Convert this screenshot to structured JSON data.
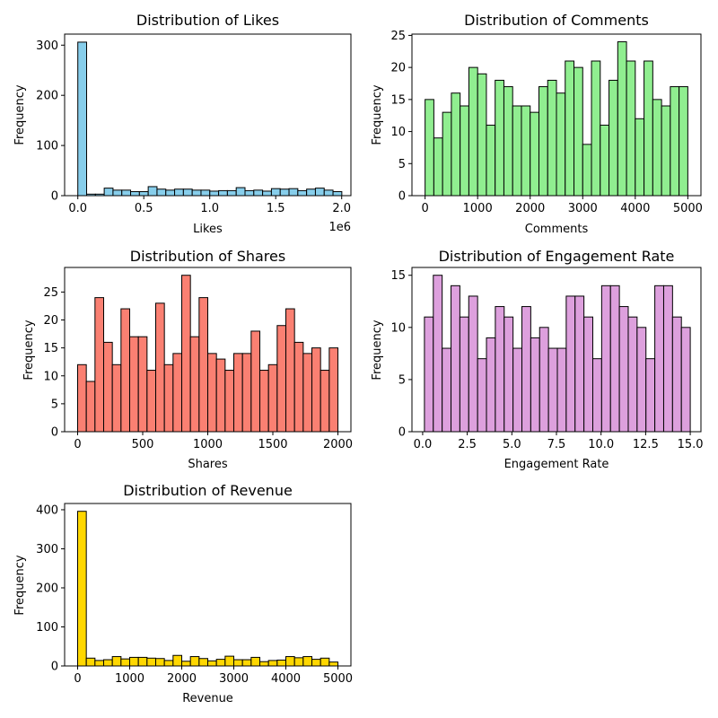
{
  "chart_data": [
    {
      "type": "bar",
      "title": "Distribution of Likes",
      "xlabel": "Likes",
      "ylabel": "Frequency",
      "x_offset_text": "1e6",
      "xlim": [
        -0.1,
        2.07
      ],
      "ylim": [
        0,
        322
      ],
      "xticks": [
        0.0,
        0.5,
        1.0,
        1.5,
        2.0
      ],
      "xtick_labels": [
        "0.0",
        "0.5",
        "1.0",
        "1.5",
        "2.0"
      ],
      "yticks": [
        0,
        100,
        200,
        300
      ],
      "ytick_labels": [
        "0",
        "100",
        "200",
        "300"
      ],
      "bin_start": 0.0,
      "bin_width": 0.0667,
      "values": [
        306,
        3,
        3,
        15,
        11,
        11,
        8,
        8,
        18,
        13,
        11,
        13,
        13,
        11,
        11,
        9,
        10,
        10,
        16,
        10,
        11,
        9,
        14,
        13,
        14,
        10,
        13,
        15,
        11,
        8
      ],
      "color": "#87ceeb"
    },
    {
      "type": "bar",
      "title": "Distribution of Comments",
      "xlabel": "Comments",
      "ylabel": "Frequency",
      "xlim": [
        -250,
        5250
      ],
      "ylim": [
        0,
        25.2
      ],
      "xticks": [
        0,
        1000,
        2000,
        3000,
        4000,
        5000
      ],
      "xtick_labels": [
        "0",
        "1000",
        "2000",
        "3000",
        "4000",
        "5000"
      ],
      "yticks": [
        0,
        5,
        10,
        15,
        20,
        25
      ],
      "ytick_labels": [
        "0",
        "5",
        "10",
        "15",
        "20",
        "25"
      ],
      "bin_start": 0,
      "bin_width": 166.67,
      "values": [
        15,
        9,
        13,
        16,
        14,
        20,
        19,
        11,
        18,
        17,
        14,
        14,
        13,
        17,
        18,
        16,
        21,
        20,
        8,
        21,
        11,
        18,
        24,
        21,
        12,
        21,
        15,
        14,
        17,
        17
      ],
      "color": "#90ee90"
    },
    {
      "type": "bar",
      "title": "Distribution of Shares",
      "xlabel": "Shares",
      "ylabel": "Frequency",
      "xlim": [
        -100,
        2100
      ],
      "ylim": [
        0,
        29.4
      ],
      "xticks": [
        0,
        500,
        1000,
        1500,
        2000
      ],
      "xtick_labels": [
        "0",
        "500",
        "1000",
        "1500",
        "2000"
      ],
      "yticks": [
        0,
        5,
        10,
        15,
        20,
        25
      ],
      "ytick_labels": [
        "0",
        "5",
        "10",
        "15",
        "20",
        "25"
      ],
      "bin_start": 0,
      "bin_width": 66.67,
      "values": [
        12,
        9,
        24,
        16,
        12,
        22,
        17,
        17,
        11,
        23,
        12,
        14,
        28,
        17,
        24,
        14,
        13,
        11,
        14,
        14,
        18,
        11,
        12,
        19,
        22,
        16,
        14,
        15,
        11,
        15
      ],
      "color": "#fa8072"
    },
    {
      "type": "bar",
      "title": "Distribution of Engagement Rate",
      "xlabel": "Engagement Rate",
      "ylabel": "Frequency",
      "xlim": [
        -0.6,
        15.6
      ],
      "ylim": [
        0,
        15.75
      ],
      "xticks": [
        0.0,
        2.5,
        5.0,
        7.5,
        10.0,
        12.5,
        15.0
      ],
      "xtick_labels": [
        "0.0",
        "2.5",
        "5.0",
        "7.5",
        "10.0",
        "12.5",
        "15.0"
      ],
      "yticks": [
        0,
        5,
        10,
        15
      ],
      "ytick_labels": [
        "0",
        "5",
        "10",
        "15"
      ],
      "bin_start": 0.1,
      "bin_width": 0.4967,
      "values": [
        11,
        15,
        8,
        14,
        11,
        13,
        7,
        9,
        12,
        11,
        8,
        12,
        9,
        10,
        8,
        8,
        13,
        13,
        11,
        7,
        14,
        14,
        12,
        11,
        10,
        7,
        14,
        14,
        11,
        10
      ],
      "color": "#dda0dd"
    },
    {
      "type": "bar",
      "title": "Distribution of Revenue",
      "xlabel": "Revenue",
      "ylabel": "Frequency",
      "xlim": [
        -250,
        5250
      ],
      "ylim": [
        0,
        416
      ],
      "xticks": [
        0,
        1000,
        2000,
        3000,
        4000,
        5000
      ],
      "xtick_labels": [
        "0",
        "1000",
        "2000",
        "3000",
        "4000",
        "5000"
      ],
      "yticks": [
        0,
        100,
        200,
        300,
        400
      ],
      "ytick_labels": [
        "0",
        "100",
        "200",
        "300",
        "400"
      ],
      "bin_start": 0,
      "bin_width": 166.67,
      "values": [
        396,
        20,
        14,
        16,
        24,
        18,
        22,
        22,
        20,
        19,
        14,
        27,
        12,
        24,
        19,
        13,
        17,
        25,
        16,
        16,
        22,
        11,
        14,
        15,
        24,
        21,
        24,
        17,
        20,
        10
      ],
      "color": "#ffd700"
    }
  ]
}
